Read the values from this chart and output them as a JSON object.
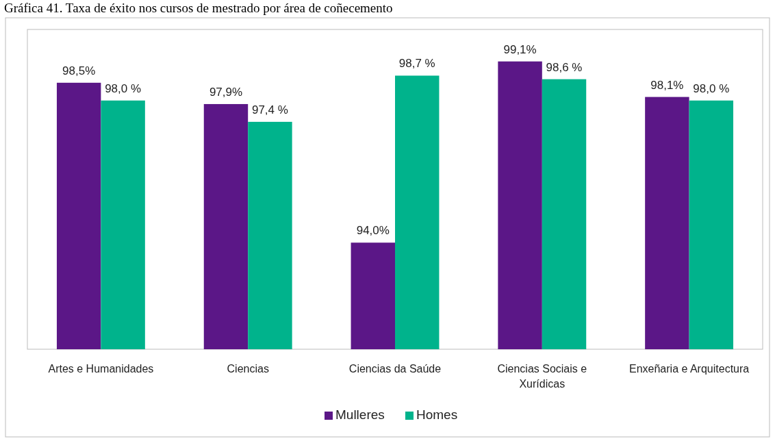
{
  "chart_data": {
    "type": "bar",
    "title": "Gráfica 41. Taxa de éxito nos cursos de mestrado por área de coñecemento",
    "categories": [
      "Artes e Humanidades",
      "Ciencias",
      "Ciencias da Saúde",
      "Ciencias Sociais e Xurídicas",
      "Enxeñaria e Arquitectura"
    ],
    "series": [
      {
        "name": "Mulleres",
        "color": "#5b1787",
        "values": [
          98.5,
          97.9,
          94.0,
          99.1,
          98.1
        ],
        "value_labels": [
          "98,5%",
          "97,9%",
          "94,0%",
          "99,1%",
          "98,1%"
        ]
      },
      {
        "name": "Homes",
        "color": "#00b38c",
        "values": [
          98.0,
          97.4,
          98.7,
          98.6,
          98.0
        ],
        "value_labels": [
          "98,0 %",
          "97,4 %",
          "98,7 %",
          "98,6 %",
          "98,0 %"
        ]
      }
    ],
    "ylim": [
      91,
      100
    ],
    "tick_labels": "x",
    "legend": "bottom"
  }
}
